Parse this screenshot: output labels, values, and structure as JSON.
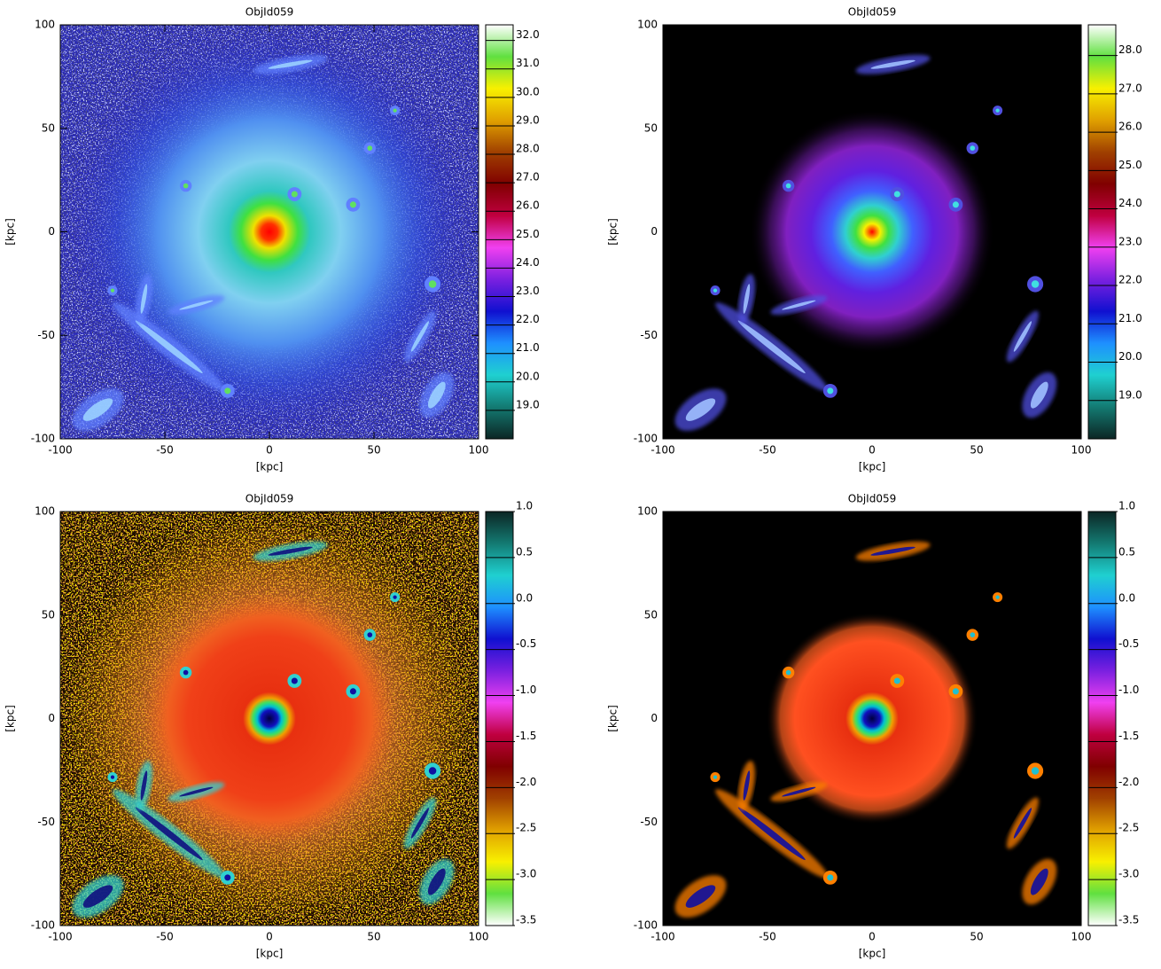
{
  "chart_data": [
    {
      "type": "heatmap",
      "title": "ObjId059",
      "x_label": "[kpc]",
      "y_label": "[kpc]",
      "xlim": [
        -100,
        100
      ],
      "ylim": [
        -100,
        100
      ],
      "xticks": [
        -100,
        -50,
        0,
        50,
        100
      ],
      "yticks": [
        -100,
        -50,
        0,
        50,
        100
      ],
      "clim": [
        18.0,
        32.55
      ],
      "cticks": [
        {
          "value": 19,
          "label": "19.0"
        },
        {
          "value": 20,
          "label": "20.0"
        },
        {
          "value": 21,
          "label": "21.0"
        },
        {
          "value": 22,
          "label": "22.0"
        },
        {
          "value": 23,
          "label": "23.0"
        },
        {
          "value": 24,
          "label": "24.0"
        },
        {
          "value": 25,
          "label": "25.0"
        },
        {
          "value": 26,
          "label": "26.0"
        },
        {
          "value": 27,
          "label": "27.0"
        },
        {
          "value": 28,
          "label": "28.0"
        },
        {
          "value": 29,
          "label": "29.0"
        },
        {
          "value": 30,
          "label": "30.0"
        },
        {
          "value": 31,
          "label": "31.0"
        },
        {
          "value": 32,
          "label": "32.0"
        }
      ],
      "colormap": [
        "#0c2624",
        "#137a72",
        "#1fd0d0",
        "#1e90ff",
        "#1010d0",
        "#7a20e0",
        "#f040f0",
        "#c00040",
        "#800000",
        "#a04000",
        "#e0a000",
        "#f8f000",
        "#60e040",
        "#ffffff"
      ]
    },
    {
      "type": "heatmap",
      "title": "ObjId059",
      "x_label": "[kpc]",
      "y_label": "[kpc]",
      "xlim": [
        -100,
        100
      ],
      "ylim": [
        -100,
        100
      ],
      "xticks": [
        -100,
        -50,
        0,
        50,
        100
      ],
      "yticks": [
        -100,
        -50,
        0,
        50,
        100
      ],
      "clim": [
        18.0,
        28.8
      ],
      "cticks": [
        {
          "value": 19,
          "label": "19.0"
        },
        {
          "value": 20,
          "label": "20.0"
        },
        {
          "value": 21,
          "label": "21.0"
        },
        {
          "value": 22,
          "label": "22.0"
        },
        {
          "value": 23,
          "label": "23.0"
        },
        {
          "value": 24,
          "label": "24.0"
        },
        {
          "value": 25,
          "label": "25.0"
        },
        {
          "value": 26,
          "label": "26.0"
        },
        {
          "value": 27,
          "label": "27.0"
        },
        {
          "value": 28,
          "label": "28.0"
        }
      ],
      "colormap": [
        "#0c2624",
        "#137a72",
        "#1fd0d0",
        "#1e90ff",
        "#1010d0",
        "#7a20e0",
        "#f040f0",
        "#c00040",
        "#800000",
        "#a04000",
        "#e0a000",
        "#f8f000",
        "#60e040",
        "#ffffff"
      ]
    },
    {
      "type": "heatmap",
      "title": "ObjId059",
      "x_label": "[kpc]",
      "y_label": "[kpc]",
      "xlim": [
        -100,
        100
      ],
      "ylim": [
        -100,
        100
      ],
      "xticks": [
        -100,
        -50,
        0,
        50,
        100
      ],
      "yticks": [
        -100,
        -50,
        0,
        50,
        100
      ],
      "clim": [
        -3.5,
        1.0
      ],
      "cticks": [
        -3.5,
        {
          "value": -3,
          "label": "-3.0"
        },
        -2.5,
        {
          "value": -2,
          "label": "-2.0"
        },
        -1.5,
        {
          "value": -1,
          "label": "-1.0"
        },
        -0.5,
        {
          "value": 0,
          "label": "0.0"
        },
        0.5,
        {
          "value": 1,
          "label": "1.0"
        }
      ],
      "colormap": [
        "#ffffff",
        "#60e040",
        "#f8f000",
        "#e0a000",
        "#a04000",
        "#800000",
        "#c00040",
        "#f040f0",
        "#7a20e0",
        "#1010d0",
        "#1e90ff",
        "#1fd0d0",
        "#137a72",
        "#0c2624"
      ]
    },
    {
      "type": "heatmap",
      "title": "ObjId059",
      "x_label": "[kpc]",
      "y_label": "[kpc]",
      "xlim": [
        -100,
        100
      ],
      "ylim": [
        -100,
        100
      ],
      "xticks": [
        -100,
        -50,
        0,
        50,
        100
      ],
      "yticks": [
        -100,
        -50,
        0,
        50,
        100
      ],
      "clim": [
        -3.5,
        1.0
      ],
      "cticks": [
        -3.5,
        {
          "value": -3,
          "label": "-3.0"
        },
        -2.5,
        {
          "value": -2,
          "label": "-2.0"
        },
        -1.5,
        {
          "value": -1,
          "label": "-1.0"
        },
        -0.5,
        {
          "value": 0,
          "label": "0.0"
        },
        0.5,
        {
          "value": 1,
          "label": "1.0"
        }
      ],
      "colormap": [
        "#ffffff",
        "#60e040",
        "#f8f000",
        "#e0a000",
        "#a04000",
        "#800000",
        "#c00040",
        "#f040f0",
        "#7a20e0",
        "#1010d0",
        "#1e90ff",
        "#1fd0d0",
        "#137a72",
        "#0c2624"
      ]
    }
  ]
}
